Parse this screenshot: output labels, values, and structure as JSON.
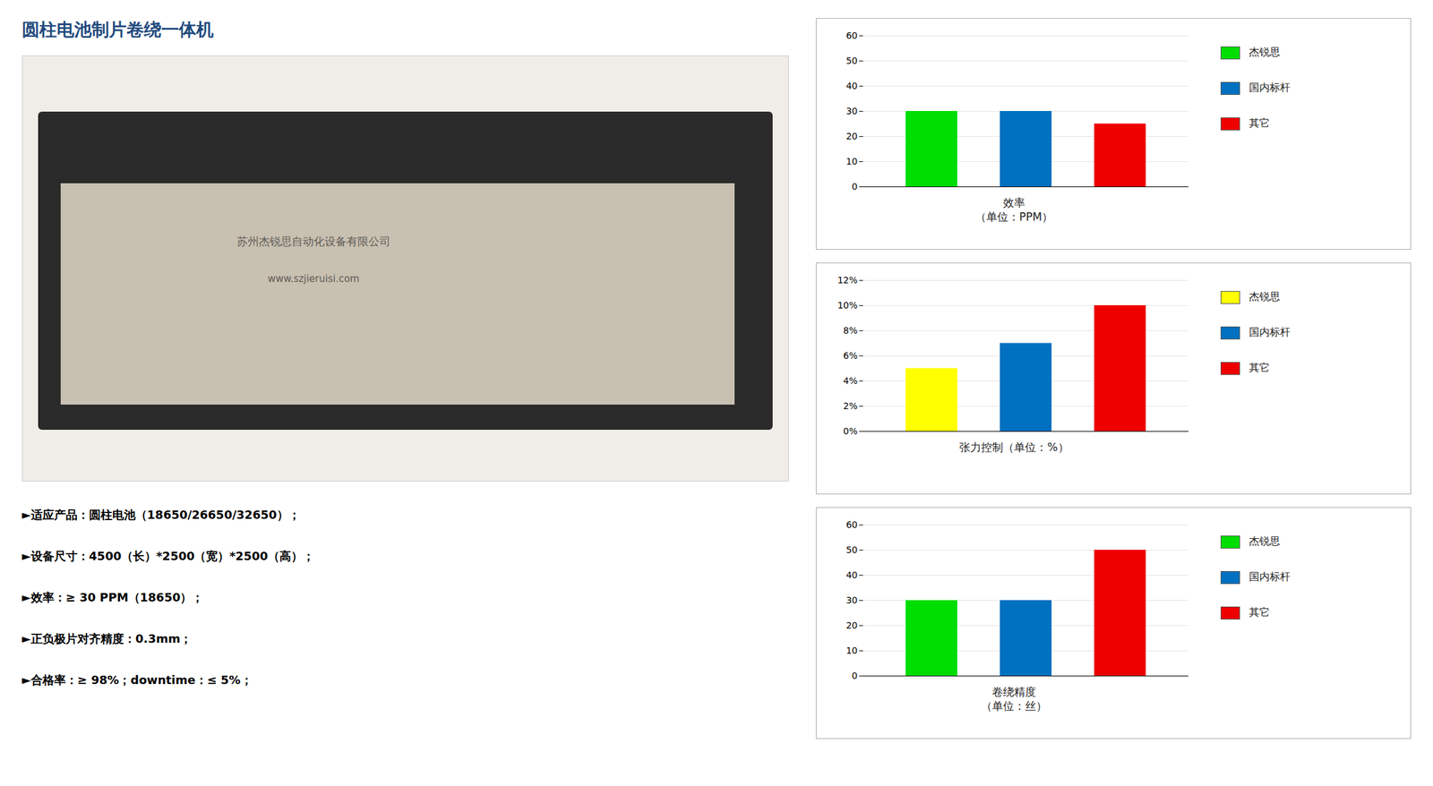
{
  "title": "圆柱电池制片卷绕一体机",
  "annotations": [
    "►适应产品：圆柱电池（18650/26650/32650）；",
    "►设备尺寸：4500（长）*2500（宽）*2500（高）；",
    "►效率：≥ 30 PPM（18650）；",
    "►正负极片对齐精度：0.3mm；",
    "►合格率：≥ 98%；downtime：≤ 5%；"
  ],
  "watermark": [
    "苏州杰锐思自动化设备有限公司",
    "www.szjieruisi.com"
  ],
  "chart_data": [
    {
      "type": "bar",
      "title": "效率",
      "subtitle": "（单位：PPM）",
      "categories": [
        "杰锐思",
        "国内标杆",
        "其它"
      ],
      "values": [
        30,
        30,
        25
      ],
      "colors": [
        "#00dd00",
        "#0070c0",
        "#ee0000"
      ],
      "ylim": [
        0,
        60
      ],
      "yticks": [
        0,
        10,
        20,
        30,
        40,
        50,
        60
      ],
      "grid": true,
      "legend": "right",
      "tick_labels": "y"
    },
    {
      "type": "bar",
      "title": "张力控制（单位：%）",
      "categories": [
        "杰锐思",
        "国内标杆",
        "其它"
      ],
      "values": [
        0.05,
        0.07,
        0.1
      ],
      "colors": [
        "#ffff00",
        "#0070c0",
        "#ee0000"
      ],
      "ylim": [
        0,
        0.12
      ],
      "yticks": [
        {
          "value": 0,
          "label": "0%"
        },
        {
          "value": 0.02,
          "label": "2%"
        },
        {
          "value": 0.04,
          "label": "4%"
        },
        {
          "value": 0.06,
          "label": "6%"
        },
        {
          "value": 0.08,
          "label": "8%"
        },
        {
          "value": 0.1,
          "label": "10%"
        },
        {
          "value": 0.12,
          "label": "12%"
        }
      ],
      "grid": true,
      "legend": "right",
      "tick_labels": "y"
    },
    {
      "type": "bar",
      "title": "卷绕精度",
      "subtitle": "（单位：丝）",
      "categories": [
        "杰锐思",
        "国内标杆",
        "其它"
      ],
      "values": [
        30,
        30,
        50
      ],
      "colors": [
        "#00dd00",
        "#0070c0",
        "#ee0000"
      ],
      "ylim": [
        0,
        60
      ],
      "yticks": [
        0,
        10,
        20,
        30,
        40,
        50,
        60
      ],
      "grid": true,
      "legend": "right",
      "tick_labels": "y"
    }
  ]
}
